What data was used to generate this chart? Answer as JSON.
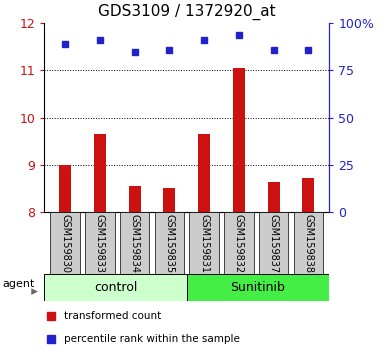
{
  "title": "GDS3109 / 1372920_at",
  "categories": [
    "GSM159830",
    "GSM159833",
    "GSM159834",
    "GSM159835",
    "GSM159831",
    "GSM159832",
    "GSM159837",
    "GSM159838"
  ],
  "bar_values": [
    9.0,
    9.65,
    8.55,
    8.52,
    9.65,
    11.05,
    8.65,
    8.72
  ],
  "dot_values": [
    11.56,
    11.65,
    11.38,
    11.44,
    11.65,
    11.75,
    11.44,
    11.44
  ],
  "ylim_left": [
    8,
    12
  ],
  "yticks_left": [
    8,
    9,
    10,
    11,
    12
  ],
  "right_tick_positions": [
    8,
    9,
    10,
    11,
    12
  ],
  "right_tick_labels": [
    "0",
    "25",
    "50",
    "75",
    "100%"
  ],
  "bar_color": "#cc1111",
  "dot_color": "#2222cc",
  "group_labels": [
    "control",
    "Sunitinib"
  ],
  "group_colors": [
    "#ccffcc",
    "#44ee44"
  ],
  "agent_label": "agent",
  "legend_bar_label": "transformed count",
  "legend_dot_label": "percentile rank within the sample",
  "title_fontsize": 11,
  "label_fontsize": 7,
  "group_fontsize": 9,
  "legend_fontsize": 7.5,
  "grid_ticks": [
    9,
    10,
    11
  ]
}
